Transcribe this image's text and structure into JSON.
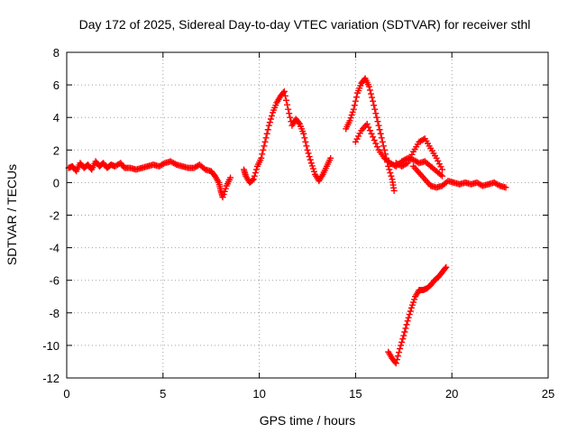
{
  "chart_data": {
    "type": "scatter",
    "title": "Day 172 of 2025, Sidereal Day-to-day VTEC variation (SDTVAR) for receiver sthl",
    "xlabel": "GPS time / hours",
    "ylabel": "SDTVAR / TECUs",
    "xlim": [
      0,
      25
    ],
    "ylim": [
      -12,
      8
    ],
    "xticks": [
      "0",
      "5",
      "10",
      "15",
      "20",
      "25"
    ],
    "yticks": [
      "-12",
      "-10",
      "-8",
      "-6",
      "-4",
      "-2",
      "0",
      "2",
      "4",
      "6",
      "8"
    ],
    "grid": true,
    "marker": "+",
    "series": [
      {
        "name": "SDTVAR",
        "color": "#ff0000",
        "points": [
          [
            0.1,
            0.9
          ],
          [
            0.3,
            1.0
          ],
          [
            0.5,
            0.7
          ],
          [
            0.7,
            1.2
          ],
          [
            0.9,
            0.9
          ],
          [
            1.1,
            1.1
          ],
          [
            1.3,
            0.8
          ],
          [
            1.5,
            1.3
          ],
          [
            1.7,
            1.0
          ],
          [
            1.9,
            1.2
          ],
          [
            2.1,
            0.9
          ],
          [
            2.3,
            1.1
          ],
          [
            2.5,
            1.0
          ],
          [
            2.8,
            1.2
          ],
          [
            3.0,
            0.9
          ],
          [
            3.3,
            0.9
          ],
          [
            3.6,
            0.8
          ],
          [
            3.9,
            0.9
          ],
          [
            4.2,
            1.0
          ],
          [
            4.5,
            1.1
          ],
          [
            4.8,
            1.0
          ],
          [
            5.1,
            1.2
          ],
          [
            5.4,
            1.3
          ],
          [
            5.7,
            1.1
          ],
          [
            6.0,
            1.0
          ],
          [
            6.3,
            0.9
          ],
          [
            6.6,
            0.9
          ],
          [
            6.9,
            1.1
          ],
          [
            7.2,
            0.8
          ],
          [
            7.5,
            0.7
          ],
          [
            7.7,
            0.4
          ],
          [
            7.9,
            0.0
          ],
          [
            8.0,
            -0.5
          ],
          [
            8.1,
            -0.9
          ],
          [
            8.3,
            -0.2
          ],
          [
            8.5,
            0.3
          ],
          [
            9.2,
            0.8
          ],
          [
            9.3,
            0.4
          ],
          [
            9.5,
            0.0
          ],
          [
            9.7,
            0.2
          ],
          [
            9.9,
            1.0
          ],
          [
            10.1,
            1.5
          ],
          [
            10.3,
            2.5
          ],
          [
            10.5,
            3.5
          ],
          [
            10.7,
            4.3
          ],
          [
            10.9,
            4.9
          ],
          [
            11.1,
            5.3
          ],
          [
            11.3,
            5.6
          ],
          [
            11.5,
            4.5
          ],
          [
            11.7,
            3.5
          ],
          [
            11.9,
            3.9
          ],
          [
            12.1,
            3.6
          ],
          [
            12.3,
            3.0
          ],
          [
            12.5,
            2.0
          ],
          [
            12.7,
            1.2
          ],
          [
            12.9,
            0.5
          ],
          [
            13.1,
            0.1
          ],
          [
            13.3,
            0.5
          ],
          [
            13.5,
            1.0
          ],
          [
            13.7,
            1.5
          ],
          [
            14.5,
            3.3
          ],
          [
            14.7,
            3.8
          ],
          [
            14.9,
            4.5
          ],
          [
            15.1,
            5.5
          ],
          [
            15.3,
            6.1
          ],
          [
            15.5,
            6.4
          ],
          [
            15.7,
            5.9
          ],
          [
            15.9,
            5.0
          ],
          [
            16.1,
            4.0
          ],
          [
            16.3,
            3.0
          ],
          [
            16.5,
            2.0
          ],
          [
            16.7,
            1.0
          ],
          [
            16.9,
            0.2
          ],
          [
            17.0,
            -0.5
          ],
          [
            15.0,
            2.5
          ],
          [
            15.3,
            3.2
          ],
          [
            15.6,
            3.6
          ],
          [
            15.9,
            2.8
          ],
          [
            16.2,
            2.0
          ],
          [
            16.5,
            1.5
          ],
          [
            16.8,
            1.2
          ],
          [
            17.1,
            1.0
          ],
          [
            17.4,
            1.3
          ],
          [
            17.7,
            1.5
          ],
          [
            18.0,
            1.4
          ],
          [
            18.3,
            1.2
          ],
          [
            18.6,
            1.3
          ],
          [
            18.9,
            1.0
          ],
          [
            19.2,
            0.7
          ],
          [
            19.5,
            0.4
          ],
          [
            17.1,
            1.2
          ],
          [
            17.4,
            1.0
          ],
          [
            17.7,
            1.2
          ],
          [
            18.0,
            1.9
          ],
          [
            18.3,
            2.5
          ],
          [
            18.6,
            2.7
          ],
          [
            18.9,
            2.1
          ],
          [
            19.2,
            1.5
          ],
          [
            19.5,
            0.8
          ],
          [
            18.0,
            1.0
          ],
          [
            18.3,
            0.6
          ],
          [
            18.6,
            0.2
          ],
          [
            18.9,
            -0.2
          ],
          [
            19.2,
            -0.3
          ],
          [
            19.5,
            -0.2
          ],
          [
            19.8,
            0.1
          ],
          [
            20.1,
            0.0
          ],
          [
            20.4,
            -0.1
          ],
          [
            20.7,
            0.0
          ],
          [
            21.0,
            -0.1
          ],
          [
            21.3,
            0.0
          ],
          [
            21.6,
            -0.2
          ],
          [
            21.9,
            -0.1
          ],
          [
            22.2,
            0.0
          ],
          [
            22.5,
            -0.2
          ],
          [
            22.8,
            -0.3
          ],
          [
            16.7,
            -10.4
          ],
          [
            16.9,
            -10.8
          ],
          [
            17.1,
            -11.1
          ],
          [
            17.3,
            -10.2
          ],
          [
            17.5,
            -9.4
          ],
          [
            17.7,
            -8.5
          ],
          [
            17.9,
            -7.7
          ],
          [
            18.1,
            -7.0
          ],
          [
            18.3,
            -6.6
          ],
          [
            18.5,
            -6.6
          ],
          [
            18.7,
            -6.5
          ],
          [
            18.9,
            -6.3
          ],
          [
            19.1,
            -6.0
          ],
          [
            19.3,
            -5.8
          ],
          [
            19.5,
            -5.5
          ],
          [
            19.7,
            -5.2
          ]
        ]
      }
    ]
  }
}
